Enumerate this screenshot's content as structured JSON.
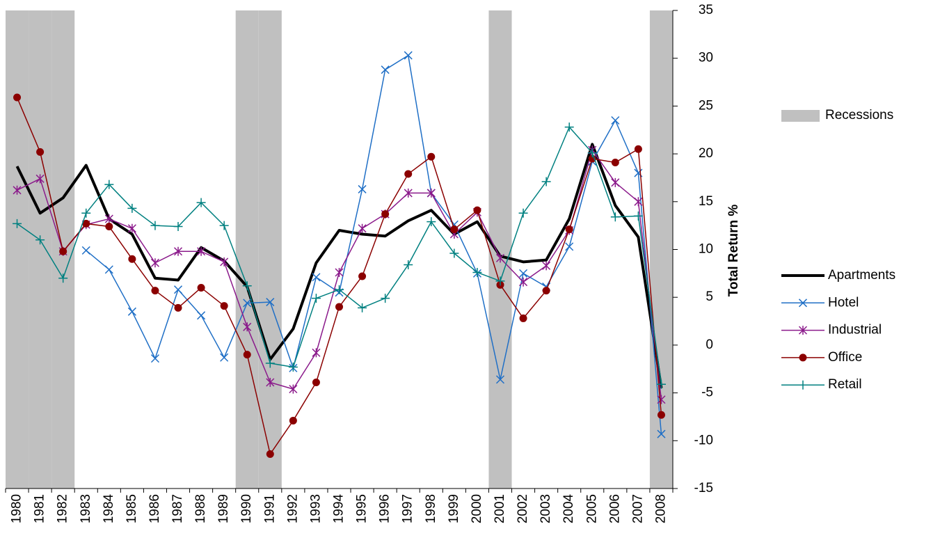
{
  "chart_data": {
    "type": "line",
    "y_label": "Total Return %",
    "categories": [
      "1980",
      "1981",
      "1982",
      "1983",
      "1984",
      "1985",
      "1986",
      "1987",
      "1988",
      "1989",
      "1990",
      "1991",
      "1992",
      "1993",
      "1994",
      "1995",
      "1996",
      "1997",
      "1998",
      "1999",
      "2000",
      "2001",
      "2002",
      "2003",
      "2004",
      "2005",
      "2006",
      "2007",
      "2008"
    ],
    "ylim": [
      -15,
      35
    ],
    "yticks": [
      -15,
      -10,
      -5,
      0,
      5,
      10,
      15,
      20,
      25,
      30,
      35
    ],
    "y2lim": [
      0,
      1
    ],
    "series": [
      {
        "name": "Recessions",
        "type": "column",
        "axis": "y2",
        "color": "#c0c0c0",
        "values": [
          1,
          1,
          1,
          0,
          0,
          0,
          0,
          0,
          0,
          0,
          1,
          1,
          0,
          0,
          0,
          0,
          0,
          0,
          0,
          0,
          0,
          1,
          0,
          0,
          0,
          0,
          0,
          0,
          1
        ]
      },
      {
        "name": "Apartments",
        "type": "line",
        "color": "#000000",
        "width": 4,
        "marker": "none",
        "values": [
          18.7,
          13.8,
          15.4,
          18.8,
          13.2,
          11.6,
          7.0,
          6.8,
          10.2,
          8.8,
          6.1,
          -1.5,
          1.7,
          8.6,
          12.0,
          11.6,
          11.4,
          13.0,
          14.1,
          11.6,
          12.9,
          9.3,
          8.7,
          8.9,
          13.2,
          21.0,
          14.6,
          11.3,
          -4.5
        ]
      },
      {
        "name": "Hotel",
        "type": "line",
        "color": "#1f6fc6",
        "width": 1.5,
        "marker": "x",
        "values": [
          null,
          null,
          null,
          9.9,
          7.9,
          3.5,
          -1.4,
          5.8,
          3.1,
          -1.3,
          4.4,
          4.5,
          -2.4,
          7.1,
          5.5,
          16.3,
          28.8,
          30.3,
          15.9,
          12.6,
          7.5,
          -3.6,
          7.5,
          6.1,
          10.3,
          19.2,
          23.5,
          18.0,
          -9.3
        ]
      },
      {
        "name": "Industrial",
        "type": "line",
        "color": "#8b1a8b",
        "width": 1.5,
        "marker": "asterisk",
        "values": [
          16.2,
          17.4,
          9.8,
          12.6,
          13.2,
          12.2,
          8.6,
          9.8,
          9.8,
          8.7,
          1.9,
          -3.9,
          -4.6,
          -0.8,
          7.6,
          12.2,
          13.7,
          15.9,
          15.9,
          11.6,
          13.9,
          9.1,
          6.6,
          8.3,
          12.0,
          20.4,
          17.0,
          15.0,
          -5.7
        ]
      },
      {
        "name": "Office",
        "type": "line",
        "color": "#8b0000",
        "width": 1.5,
        "marker": "circle",
        "values": [
          25.9,
          20.2,
          9.8,
          12.7,
          12.4,
          9.0,
          5.7,
          3.9,
          6.0,
          4.1,
          -1.0,
          -11.4,
          -7.9,
          -3.9,
          4.0,
          7.2,
          13.7,
          17.9,
          19.7,
          12.1,
          14.1,
          6.3,
          2.8,
          5.7,
          12.1,
          19.5,
          19.1,
          20.5,
          -7.3
        ]
      },
      {
        "name": "Retail",
        "type": "line",
        "color": "#008080",
        "width": 1.5,
        "marker": "plus",
        "values": [
          12.7,
          11.0,
          7.0,
          13.8,
          16.8,
          14.3,
          12.5,
          12.4,
          14.9,
          12.5,
          6.2,
          -1.9,
          -2.3,
          4.9,
          5.8,
          3.9,
          4.9,
          8.4,
          12.9,
          9.6,
          7.6,
          6.7,
          13.8,
          17.1,
          22.8,
          20.1,
          13.4,
          13.5,
          -4.1
        ]
      }
    ]
  }
}
